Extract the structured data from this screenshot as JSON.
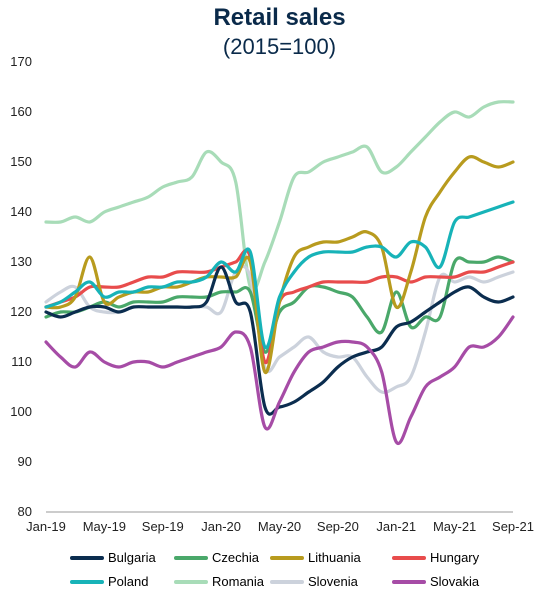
{
  "chart_data": {
    "type": "line",
    "title": "Retail sales",
    "subtitle": "(2015=100)",
    "ylim": [
      80,
      170
    ],
    "yticks": [
      80,
      90,
      100,
      110,
      120,
      130,
      140,
      150,
      160,
      170
    ],
    "x_tick_labels": [
      "Jan-19",
      "May-19",
      "Sep-19",
      "Jan-20",
      "May-20",
      "Sep-20",
      "Jan-21",
      "May-21",
      "Sep-21"
    ],
    "x": [
      "Jan-19",
      "Feb-19",
      "Mar-19",
      "Apr-19",
      "May-19",
      "Jun-19",
      "Jul-19",
      "Aug-19",
      "Sep-19",
      "Oct-19",
      "Nov-19",
      "Dec-19",
      "Jan-20",
      "Feb-20",
      "Mar-20",
      "Apr-20",
      "May-20",
      "Jun-20",
      "Jul-20",
      "Aug-20",
      "Sep-20",
      "Oct-20",
      "Nov-20",
      "Dec-20",
      "Jan-21",
      "Feb-21",
      "Mar-21",
      "Apr-21",
      "May-21",
      "Jun-21",
      "Jul-21",
      "Aug-21",
      "Sep-21"
    ],
    "legend_position": "bottom",
    "grid": false,
    "series": [
      {
        "name": "Bulgaria",
        "color": "#0b2d4f",
        "values": [
          120,
          119,
          120,
          121,
          121,
          120,
          121,
          121,
          121,
          121,
          121,
          122,
          129,
          122,
          120,
          101,
          101,
          102,
          104,
          106,
          109,
          111,
          112,
          113,
          117,
          118,
          120,
          122,
          124,
          125,
          123,
          122,
          123
        ]
      },
      {
        "name": "Czechia",
        "color": "#4aa86a",
        "values": [
          119,
          120,
          120,
          121,
          122,
          121,
          122,
          122,
          122,
          123,
          123,
          123,
          124,
          124,
          124,
          112,
          120,
          122,
          125,
          125,
          124,
          123,
          119,
          116,
          124,
          117,
          119,
          119,
          130,
          130,
          130,
          131,
          130
        ]
      },
      {
        "name": "Lithuania",
        "color": "#b89b1e",
        "values": [
          121,
          121,
          123,
          131,
          122,
          123,
          124,
          124,
          125,
          125,
          126,
          127,
          127,
          127,
          130,
          108,
          122,
          131,
          133,
          134,
          134,
          135,
          136,
          133,
          121,
          128,
          139,
          144,
          148,
          151,
          150,
          149,
          150
        ]
      },
      {
        "name": "Hungary",
        "color": "#e84c4c",
        "values": [
          121,
          122,
          123,
          125,
          125,
          125,
          126,
          127,
          127,
          128,
          128,
          128,
          129,
          130,
          131,
          110,
          122,
          124,
          125,
          126,
          126,
          126,
          126,
          127,
          127,
          126,
          127,
          127,
          127,
          128,
          128,
          129,
          130
        ]
      },
      {
        "name": "Poland",
        "color": "#17b3b8",
        "values": [
          121,
          122,
          124,
          126,
          123,
          124,
          124,
          125,
          125,
          126,
          126,
          127,
          130,
          128,
          132,
          113,
          123,
          128,
          131,
          132,
          132,
          132,
          133,
          133,
          131,
          134,
          133,
          129,
          138,
          139,
          140,
          141,
          142
        ]
      },
      {
        "name": "Romania",
        "color": "#a8dcb8",
        "values": [
          138,
          138,
          139,
          138,
          140,
          141,
          142,
          143,
          145,
          146,
          147,
          152,
          150,
          146,
          125,
          130,
          138,
          147,
          148,
          150,
          151,
          152,
          153,
          148,
          149,
          152,
          155,
          158,
          160,
          159,
          161,
          162,
          162
        ]
      },
      {
        "name": "Slovenia",
        "color": "#ccd2dc",
        "values": [
          122,
          124,
          125,
          121,
          120,
          120,
          121,
          121,
          121,
          121,
          121,
          121,
          120,
          128,
          127,
          109,
          111,
          113,
          115,
          112,
          111,
          111,
          107,
          104,
          105,
          107,
          116,
          127,
          126,
          127,
          126,
          127,
          128
        ]
      },
      {
        "name": "Slovakia",
        "color": "#a64ca6",
        "values": [
          114,
          111,
          109,
          112,
          110,
          109,
          110,
          110,
          109,
          110,
          111,
          112,
          113,
          116,
          113,
          97,
          102,
          108,
          112,
          113,
          114,
          114,
          113,
          108,
          94,
          99,
          105,
          107,
          109,
          113,
          113,
          115,
          119
        ]
      }
    ]
  }
}
